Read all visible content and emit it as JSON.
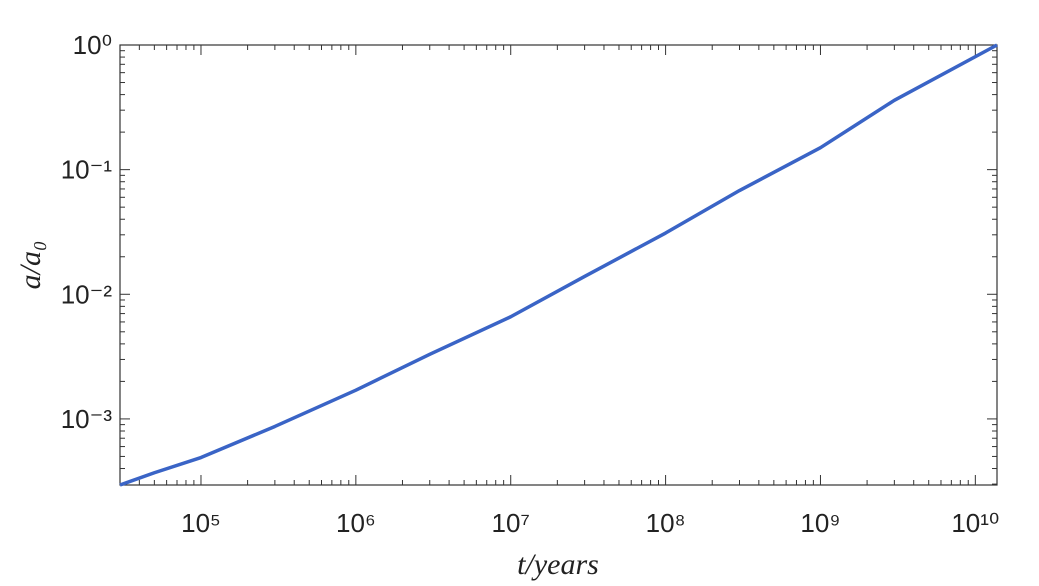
{
  "chart_data": {
    "type": "line",
    "x_label": "t/years",
    "y_label": "a/a₀",
    "xscale": "log",
    "yscale": "log",
    "xlim": [
      30000,
      13800000000
    ],
    "ylim": [
      0.000295,
      1
    ],
    "xticks": [
      {
        "value": 100000,
        "label": "10⁵"
      },
      {
        "value": 1000000,
        "label": "10⁶"
      },
      {
        "value": 10000000,
        "label": "10⁷"
      },
      {
        "value": 100000000,
        "label": "10⁸"
      },
      {
        "value": 1000000000,
        "label": "10⁹"
      },
      {
        "value": 10000000000,
        "label": "10¹⁰"
      }
    ],
    "yticks": [
      {
        "value": 0.001,
        "label": "10⁻³"
      },
      {
        "value": 0.01,
        "label": "10⁻²"
      },
      {
        "value": 0.1,
        "label": "10⁻¹"
      },
      {
        "value": 1,
        "label": "10⁰"
      }
    ],
    "grid": false,
    "series": [
      {
        "color": "#3a64c6",
        "x": [
          30000,
          50000,
          100000,
          300000,
          1000000,
          3000000,
          10000000,
          30000000,
          100000000,
          300000000,
          1000000000,
          3000000000,
          13800000000
        ],
        "values": [
          0.000295,
          0.00037,
          0.00049,
          0.00087,
          0.0017,
          0.0033,
          0.0066,
          0.0139,
          0.031,
          0.068,
          0.15,
          0.36,
          1
        ]
      }
    ]
  }
}
